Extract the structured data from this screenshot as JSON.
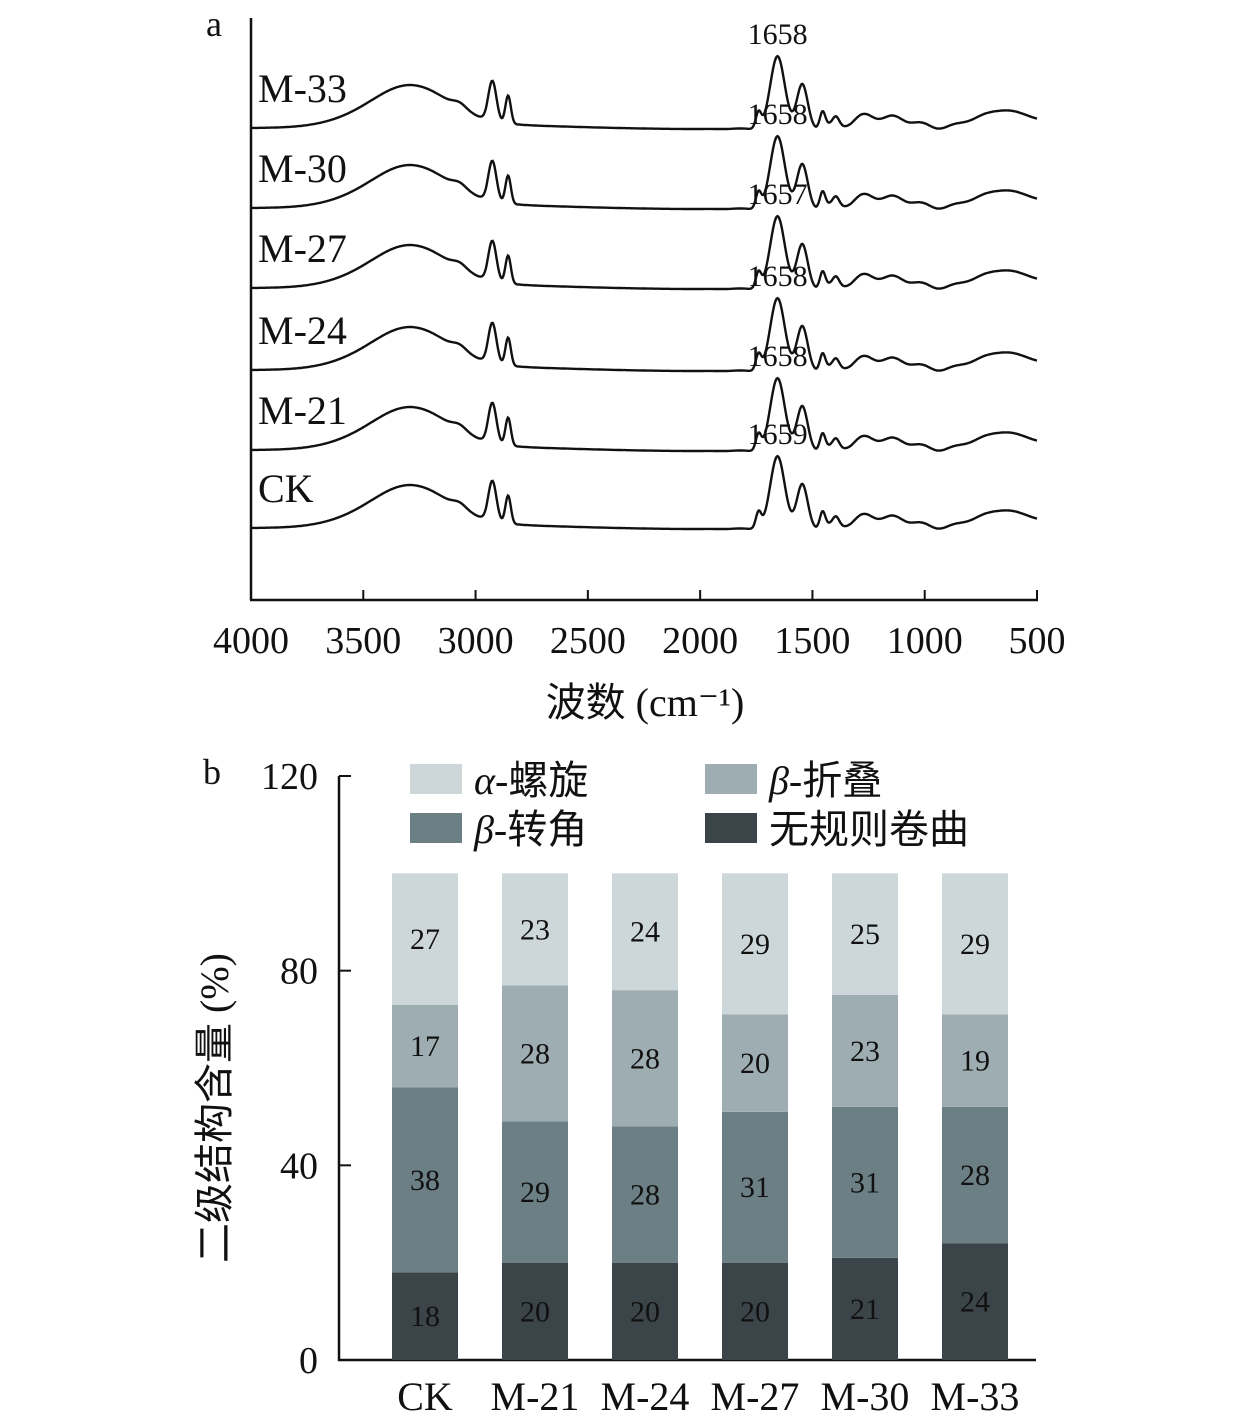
{
  "chart_data": [
    {
      "panel": "a",
      "type": "line",
      "xlabel": "波数 (cm⁻¹)",
      "x_ticks": [
        4000,
        3500,
        3000,
        2500,
        2000,
        1500,
        1000,
        500
      ],
      "xlim": [
        4000,
        500
      ],
      "y_axis_visible": true,
      "series": [
        {
          "name": "M-33",
          "peak_label": "1658"
        },
        {
          "name": "M-30",
          "peak_label": "1658"
        },
        {
          "name": "M-27",
          "peak_label": "1657"
        },
        {
          "name": "M-24",
          "peak_label": "1658"
        },
        {
          "name": "M-21",
          "peak_label": "1658"
        },
        {
          "name": "CK",
          "peak_label": "1659"
        }
      ],
      "stroke_color": "#111111"
    },
    {
      "panel": "b",
      "type": "bar",
      "stacked": true,
      "ylabel": "二级结构含量 (%)",
      "ylim": [
        0,
        120
      ],
      "y_ticks": [
        0,
        40,
        80,
        120
      ],
      "categories": [
        "CK",
        "M-21",
        "M-24",
        "M-27",
        "M-30",
        "M-33"
      ],
      "series": [
        {
          "name": "无规则卷曲",
          "color": "#3b4448",
          "values": [
            18,
            20,
            20,
            20,
            21,
            24
          ]
        },
        {
          "name": "β-转角",
          "color": "#6b7f84",
          "values": [
            38,
            29,
            28,
            31,
            31,
            28
          ]
        },
        {
          "name": "β-折叠",
          "color": "#9eadb1",
          "values": [
            17,
            28,
            28,
            20,
            23,
            19
          ]
        },
        {
          "name": "α-螺旋",
          "color": "#cdd6d8",
          "values": [
            27,
            23,
            24,
            29,
            25,
            29
          ]
        }
      ],
      "legend": {
        "placement": "top",
        "entries": [
          {
            "symbol": "α",
            "text": "-螺旋",
            "series_index": 3
          },
          {
            "symbol": "β",
            "text": "-折叠",
            "series_index": 2
          },
          {
            "symbol": "β",
            "text": "-转角",
            "series_index": 1
          },
          {
            "symbol": "",
            "text": "无规则卷曲",
            "series_index": 0
          }
        ]
      }
    }
  ]
}
